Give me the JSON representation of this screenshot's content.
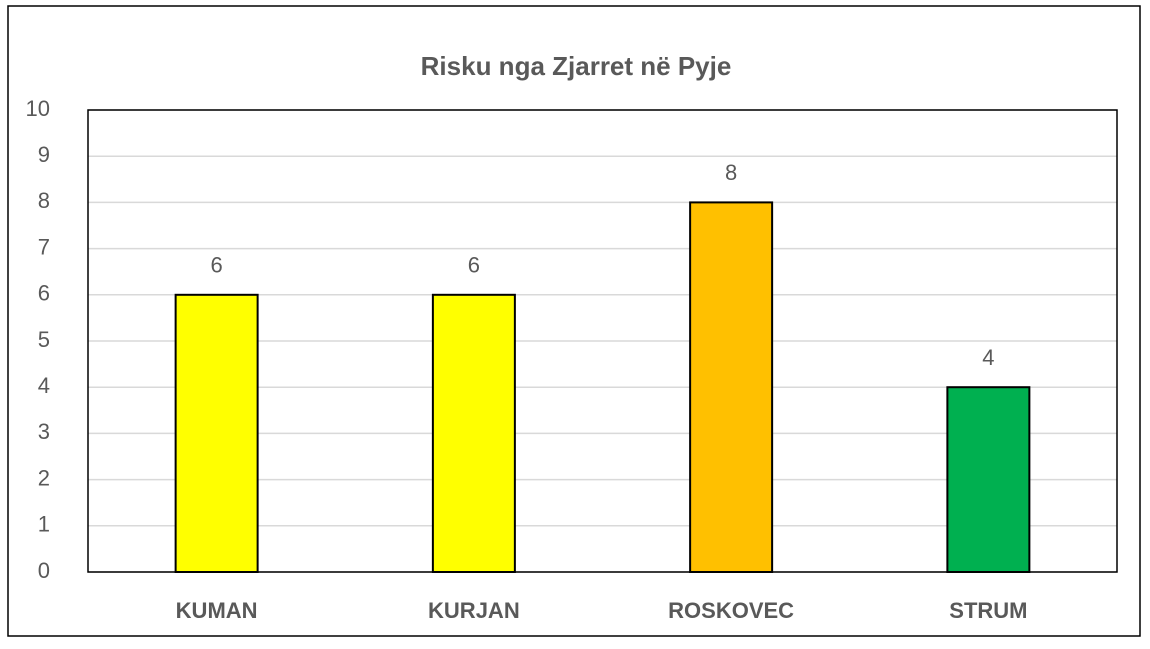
{
  "chart_data": {
    "type": "bar",
    "title": "Risku nga Zjarret në Pyje",
    "categories": [
      "KUMAN",
      "KURJAN",
      "ROSKOVEC",
      "STRUM"
    ],
    "values": [
      6,
      6,
      8,
      4
    ],
    "colors": [
      "#ffff00",
      "#ffff00",
      "#ffc000",
      "#00b050"
    ],
    "ylim": [
      0,
      10
    ],
    "yticks": [
      0,
      1,
      2,
      3,
      4,
      5,
      6,
      7,
      8,
      9,
      10
    ],
    "grid": true
  }
}
